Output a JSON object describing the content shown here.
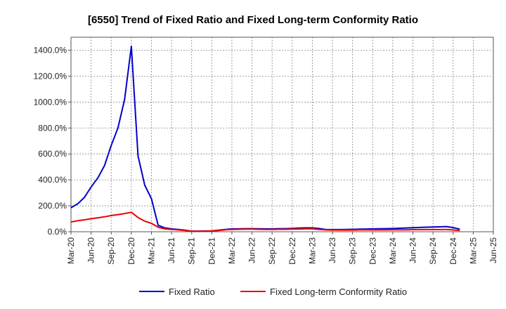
{
  "chart_data": {
    "type": "line",
    "title": "[6550]  Trend of Fixed Ratio and Fixed Long-term Conformity Ratio",
    "xlabel": "",
    "ylabel": "",
    "ylim": [
      0,
      1500
    ],
    "y_ticks": [
      0,
      200,
      400,
      600,
      800,
      1000,
      1200,
      1400
    ],
    "y_tick_labels": [
      "0.0%",
      "200.0%",
      "400.0%",
      "600.0%",
      "800.0%",
      "1000.0%",
      "1200.0%",
      "1400.0%"
    ],
    "x_tick_labels": [
      "Mar-20",
      "Jun-20",
      "Sep-20",
      "Dec-20",
      "Mar-21",
      "Jun-21",
      "Sep-21",
      "Dec-21",
      "Mar-22",
      "Jun-22",
      "Sep-22",
      "Dec-22",
      "Mar-23",
      "Jun-23",
      "Sep-23",
      "Dec-23",
      "Mar-24",
      "Jun-24",
      "Sep-24",
      "Dec-24",
      "Mar-25",
      "Jun-25"
    ],
    "x_range_months": [
      0,
      63
    ],
    "grid": true,
    "legend_position": "bottom",
    "series": [
      {
        "name": "Fixed Ratio",
        "color": "#0000cc",
        "points": [
          [
            0,
            185
          ],
          [
            1,
            215
          ],
          [
            2,
            265
          ],
          [
            3,
            345
          ],
          [
            4,
            415
          ],
          [
            5,
            510
          ],
          [
            6,
            665
          ],
          [
            7,
            800
          ],
          [
            8,
            1020
          ],
          [
            9,
            1430
          ],
          [
            10,
            585
          ],
          [
            11,
            360
          ],
          [
            12,
            255
          ],
          [
            13,
            50
          ],
          [
            14,
            30
          ],
          [
            15,
            22
          ],
          [
            16,
            18
          ],
          [
            17,
            12
          ],
          [
            18,
            5
          ],
          [
            19,
            5
          ],
          [
            20,
            6
          ],
          [
            21,
            7
          ],
          [
            22,
            12
          ],
          [
            23,
            18
          ],
          [
            24,
            22
          ],
          [
            25,
            22
          ],
          [
            26,
            24
          ],
          [
            27,
            24
          ],
          [
            28,
            23
          ],
          [
            29,
            22
          ],
          [
            30,
            22
          ],
          [
            31,
            24
          ],
          [
            32,
            24
          ],
          [
            33,
            26
          ],
          [
            34,
            28
          ],
          [
            35,
            30
          ],
          [
            36,
            30
          ],
          [
            37,
            25
          ],
          [
            38,
            18
          ],
          [
            39,
            17
          ],
          [
            40,
            17
          ],
          [
            41,
            18
          ],
          [
            42,
            19
          ],
          [
            43,
            20
          ],
          [
            44,
            21
          ],
          [
            45,
            22
          ],
          [
            46,
            23
          ],
          [
            47,
            24
          ],
          [
            48,
            25
          ],
          [
            49,
            27
          ],
          [
            50,
            29
          ],
          [
            51,
            31
          ],
          [
            52,
            33
          ],
          [
            53,
            35
          ],
          [
            54,
            37
          ],
          [
            55,
            38
          ],
          [
            56,
            40
          ],
          [
            57,
            32
          ],
          [
            58,
            20
          ]
        ]
      },
      {
        "name": "Fixed Long-term Conformity Ratio",
        "color": "#ee0000",
        "points": [
          [
            0,
            75
          ],
          [
            1,
            85
          ],
          [
            2,
            92
          ],
          [
            3,
            100
          ],
          [
            4,
            108
          ],
          [
            5,
            115
          ],
          [
            6,
            125
          ],
          [
            7,
            132
          ],
          [
            8,
            140
          ],
          [
            9,
            150
          ],
          [
            10,
            110
          ],
          [
            11,
            82
          ],
          [
            12,
            65
          ],
          [
            13,
            35
          ],
          [
            14,
            22
          ],
          [
            15,
            18
          ],
          [
            16,
            14
          ],
          [
            17,
            10
          ],
          [
            18,
            4
          ],
          [
            19,
            4
          ],
          [
            20,
            5
          ],
          [
            21,
            6
          ],
          [
            22,
            10
          ],
          [
            23,
            15
          ],
          [
            24,
            18
          ],
          [
            25,
            19
          ],
          [
            26,
            20
          ],
          [
            27,
            20
          ],
          [
            28,
            19
          ],
          [
            29,
            18
          ],
          [
            30,
            18
          ],
          [
            31,
            19
          ],
          [
            32,
            19
          ],
          [
            33,
            20
          ],
          [
            34,
            21
          ],
          [
            35,
            22
          ],
          [
            36,
            22
          ],
          [
            37,
            18
          ],
          [
            38,
            14
          ],
          [
            39,
            13
          ],
          [
            40,
            13
          ],
          [
            41,
            13
          ],
          [
            42,
            13
          ],
          [
            43,
            14
          ],
          [
            44,
            14
          ],
          [
            45,
            14
          ],
          [
            46,
            14
          ],
          [
            47,
            14
          ],
          [
            48,
            15
          ],
          [
            49,
            15
          ],
          [
            50,
            15
          ],
          [
            51,
            16
          ],
          [
            52,
            16
          ],
          [
            53,
            17
          ],
          [
            54,
            17
          ],
          [
            55,
            17
          ],
          [
            56,
            18
          ],
          [
            57,
            14
          ],
          [
            58,
            10
          ]
        ]
      }
    ]
  }
}
